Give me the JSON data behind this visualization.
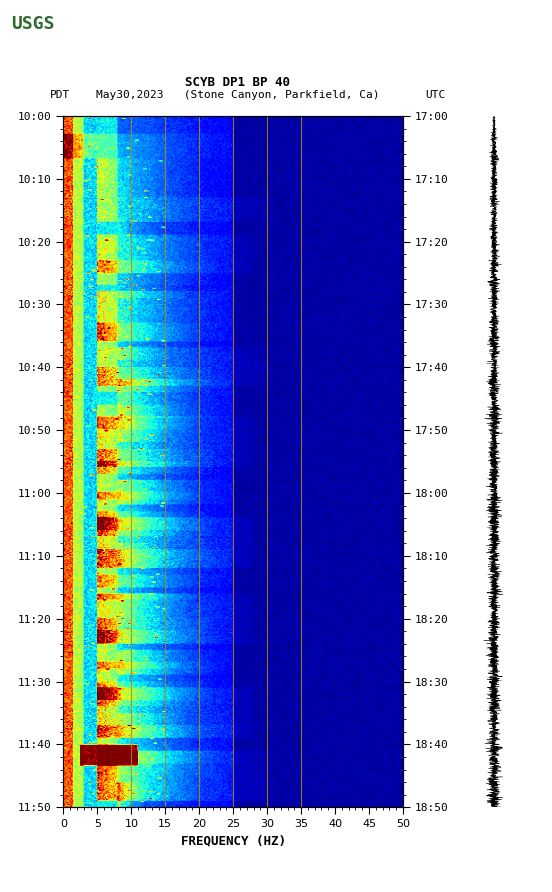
{
  "title_line1": "SCYB DP1 BP 40",
  "title_line2_left": "PDT",
  "title_line2_mid": "May30,2023   (Stone Canyon, Parkfield, Ca)",
  "title_line2_right": "UTC",
  "xlabel": "FREQUENCY (HZ)",
  "freq_min": 0,
  "freq_max": 50,
  "ytick_pdt": [
    "10:00",
    "10:10",
    "10:20",
    "10:30",
    "10:40",
    "10:50",
    "11:00",
    "11:10",
    "11:20",
    "11:30",
    "11:40",
    "11:50"
  ],
  "ytick_utc": [
    "17:00",
    "17:10",
    "17:20",
    "17:30",
    "17:40",
    "17:50",
    "18:00",
    "18:10",
    "18:20",
    "18:30",
    "18:40",
    "18:50"
  ],
  "xticks": [
    0,
    5,
    10,
    15,
    20,
    25,
    30,
    35,
    40,
    45,
    50
  ],
  "vlines_x": [
    10,
    15,
    20,
    25,
    30,
    35
  ],
  "vline_color": "#b8860b",
  "fig_bg": "#ffffff",
  "colormap": "jet",
  "n_freq": 300,
  "n_time": 700,
  "usgs_green": "#2d6a2d",
  "spectrogram_seed": 42
}
